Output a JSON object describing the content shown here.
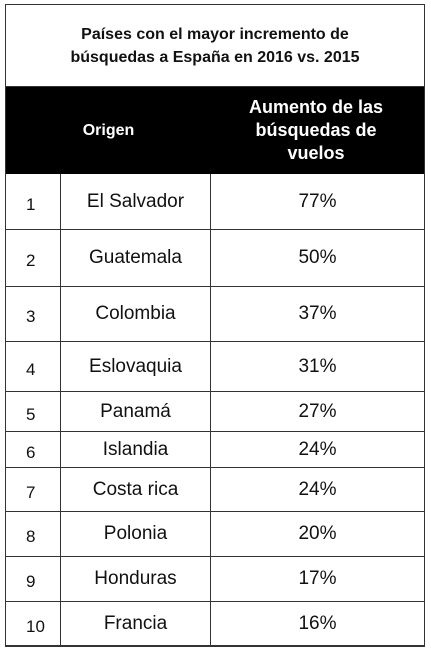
{
  "title": "Países con el mayor incremento de búsquedas a España en 2016 vs. 2015",
  "table": {
    "header": [
      "Origen",
      "Aumento de las búsquedas de vuelos"
    ],
    "rows": [
      [
        "1",
        "El Salvador",
        "77%"
      ],
      [
        "2",
        "Guatemala",
        "50%"
      ],
      [
        "3",
        "Colombia",
        "37%"
      ],
      [
        "4",
        "Eslovaquia",
        "31%"
      ],
      [
        "5",
        "Panamá",
        "27%"
      ],
      [
        "6",
        "Islandia",
        "24%"
      ],
      [
        "7",
        "Costa rica",
        "24%"
      ],
      [
        "8",
        "Polonia",
        "20%"
      ],
      [
        "9",
        "Honduras",
        "17%"
      ],
      [
        "10",
        "Francia",
        "16%"
      ]
    ]
  }
}
